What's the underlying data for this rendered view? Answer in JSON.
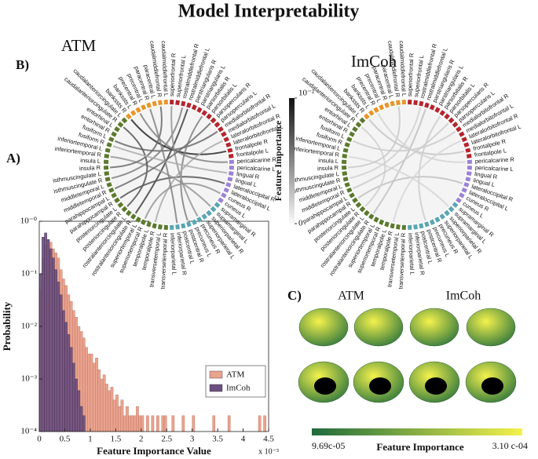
{
  "title": "Model Interpretability",
  "panel_labels": [
    "A)",
    "B)",
    "C)"
  ],
  "regions": [
    {
      "color": "#b3262e",
      "nodes": [
        "superiorfrontal R",
        "superiorfrontal L",
        "rostralmiddlefrontal R",
        "rostralmiddlefrontal L",
        "parstriangularis R",
        "parstriangularis L",
        "parsorbitalis R",
        "parsorbitalis L",
        "parsopercularis R",
        "parsopercularis L",
        "medialorbitofrontal R",
        "medialorbitofrontal L",
        "lateralorbitofrontal R",
        "lateralorbitofrontal L",
        "frontalpole R",
        "frontalpole L"
      ]
    },
    {
      "color": "#9c82d6",
      "nodes": [
        "pericalcarine R",
        "pericalcarine L",
        "lingual R",
        "lingual L",
        "lateraloccipital R",
        "lateraloccipital L",
        "cuneus R",
        "cuneus L"
      ]
    },
    {
      "color": "#5aa6b2",
      "nodes": [
        "supramarginal R",
        "supramarginal L",
        "superiorparietal R",
        "superiorparietal L",
        "precuneus R",
        "precuneus L",
        "postcentral R",
        "postcentral L",
        "inferiorparietal R",
        "inferiorparietal L"
      ]
    },
    {
      "color": "#5b7a2e",
      "nodes": [
        "transversetemporal R",
        "transversetemporal L",
        "temporalpole R",
        "temporalpole L",
        "superiortemporal R",
        "superiortemporal L",
        "rostralanteriorcingulate R",
        "rostralanteriorcingulate L",
        "posteriorcingulate R",
        "posteriorcingulate L",
        "parahippocampal R",
        "parahippocampal L",
        "middletemporal R",
        "middletemporal L",
        "isthmuscingulate R",
        "isthmuscingulate L",
        "insula R",
        "insula L",
        "inferiortemporal R",
        "inferiortemporal L",
        "fusiform R",
        "fusiform L",
        "entorhinal R",
        "entorhinal L",
        "caudalanteriorcingulate R",
        "caudalanteriorcingulate L"
      ]
    },
    {
      "color": "#e8952a",
      "nodes": [
        "bankssts R",
        "bankssts L",
        "precentral R",
        "precentral L",
        "paracentral R",
        "paracentral L",
        "caudalmiddlefrontal R",
        "caudalmiddlefrontal L"
      ]
    }
  ],
  "chart_data": [
    {
      "type": "histogram",
      "ylabel": "Probability",
      "xlabel": "Feature Importance Value",
      "x_multiplier": "x 10⁻³",
      "xlim": [
        0,
        4.5
      ],
      "xticks": [
        0,
        0.5,
        1,
        1.5,
        2,
        2.5,
        3,
        3.5,
        4,
        4.5
      ],
      "ylim": [
        0.0001,
        1
      ],
      "log_y": true,
      "yticks": [
        {
          "value": 0.0001,
          "label": "10⁻⁴"
        },
        {
          "value": 0.001,
          "label": "10⁻³"
        },
        {
          "value": 0.01,
          "label": "10⁻²"
        },
        {
          "value": 0.1,
          "label": "10⁻¹"
        },
        {
          "value": 1,
          "label": "10⁻⁰"
        }
      ],
      "legend": "right",
      "series": [
        {
          "name": "ATM",
          "color": "#eaa38e",
          "bins": [
            0,
            0.05,
            0.1,
            0.15,
            0.2,
            0.25,
            0.3,
            0.35,
            0.4,
            0.45,
            0.5,
            0.55,
            0.6,
            0.65,
            0.7,
            0.75,
            0.8,
            0.85,
            0.9,
            0.95,
            1,
            1.05,
            1.1,
            1.15,
            1.2,
            1.25,
            1.3,
            1.35,
            1.4,
            1.45,
            1.5,
            1.55,
            1.6,
            1.65,
            1.7,
            1.75,
            1.8,
            1.85,
            1.9,
            1.95,
            2,
            2.05,
            2.1,
            2.15,
            2.2,
            2.25,
            2.3,
            2.35,
            2.4,
            2.45,
            2.5,
            2.55,
            2.6,
            2.65,
            2.7,
            2.75,
            2.8,
            2.85,
            2.9,
            2.95,
            3,
            3.05,
            3.1,
            3.15,
            3.2,
            3.25,
            3.3,
            3.35,
            3.4,
            3.45,
            3.5,
            3.55,
            3.6,
            3.65,
            3.7,
            3.75,
            3.8,
            3.85,
            3.9,
            3.95,
            4,
            4.05,
            4.1,
            4.15,
            4.2,
            4.25,
            4.3,
            4.35,
            4.4,
            4.45,
            4.5
          ],
          "values": [
            0.05,
            0.2,
            0.35,
            0.45,
            0.4,
            0.3,
            0.25,
            0.2,
            0.12,
            0.08,
            0.06,
            0.04,
            0.03,
            0.02,
            0.015,
            0.01,
            0.008,
            0.006,
            0.004,
            0.003,
            0.003,
            0.002,
            0.0025,
            0.0015,
            0.001,
            0.0012,
            0.0008,
            0.0006,
            0.0007,
            0.0004,
            0.0005,
            0.0003,
            0.0004,
            0.0002,
            0.0003,
            0.0002,
            0.0002,
            0.0002,
            0.0003,
            0.0002,
            0.0002,
            0,
            0.0002,
            0,
            0.0002,
            0,
            0.0002,
            0,
            0.0002,
            0.0002,
            0,
            0,
            0.0002,
            0,
            0,
            0,
            0.0002,
            0,
            0,
            0,
            0.0002,
            0,
            0,
            0,
            0,
            0,
            0,
            0,
            0.0002,
            0,
            0,
            0,
            0,
            0,
            0.0002,
            0,
            0,
            0,
            0,
            0,
            0,
            0,
            0,
            0,
            0,
            0,
            0.0002,
            0,
            0.0002,
            0
          ]
        },
        {
          "name": "ImCoh",
          "color": "#6b4f80",
          "bins": [
            0,
            0.05,
            0.1,
            0.15,
            0.2,
            0.25,
            0.3,
            0.35,
            0.4,
            0.45,
            0.5,
            0.55,
            0.6,
            0.65,
            0.7,
            0.75,
            0.8,
            0.85,
            0.9
          ],
          "values": [
            0.1,
            0.5,
            0.6,
            0.45,
            0.3,
            0.2,
            0.12,
            0.07,
            0.04,
            0.02,
            0.012,
            0.007,
            0.004,
            0.002,
            0.001,
            0.0006,
            0.0003,
            0.0002
          ]
        }
      ]
    },
    {
      "type": "chord",
      "title": "ATM",
      "edges": [
        [
          3,
          40,
          0.008
        ],
        [
          10,
          55,
          0.006
        ],
        [
          20,
          44,
          0.007
        ],
        [
          48,
          2,
          0.005
        ],
        [
          60,
          14,
          0.009
        ],
        [
          25,
          52,
          0.004
        ],
        [
          6,
          30,
          0.005
        ],
        [
          50,
          66,
          0.006
        ],
        [
          12,
          36,
          0.003
        ],
        [
          42,
          58,
          0.007
        ],
        [
          0,
          28,
          0.004
        ],
        [
          16,
          62,
          0.005
        ],
        [
          8,
          46,
          0.006
        ],
        [
          22,
          38,
          0.004
        ],
        [
          54,
          18,
          0.003
        ],
        [
          64,
          32,
          0.005
        ]
      ]
    },
    {
      "type": "chord",
      "title": "ImCoh",
      "edges": [
        [
          3,
          40,
          0.002
        ],
        [
          10,
          55,
          0.0015
        ],
        [
          20,
          44,
          0.002
        ],
        [
          48,
          2,
          0.0012
        ],
        [
          60,
          14,
          0.0018
        ],
        [
          25,
          52,
          0.001
        ],
        [
          6,
          30,
          0.0014
        ],
        [
          50,
          66,
          0.0016
        ],
        [
          12,
          36,
          0.001
        ],
        [
          42,
          58,
          0.0013
        ],
        [
          16,
          62,
          0.0011
        ],
        [
          8,
          46,
          0.0015
        ]
      ]
    }
  ],
  "chord_colorbar": {
    "label": "Feature Importance",
    "ticks": [
      {
        "value": 0,
        "label": "0"
      },
      {
        "value": 0.01,
        "label": "10⁻²"
      }
    ]
  },
  "brain_panel": {
    "columns": [
      "ATM",
      "ImCoh"
    ],
    "colorbar_label": "Feature Importance",
    "min_label": "9.69c-05",
    "max_label": "3.10 c-04",
    "colors": [
      "#1e6b3c",
      "#f4f24c"
    ]
  }
}
